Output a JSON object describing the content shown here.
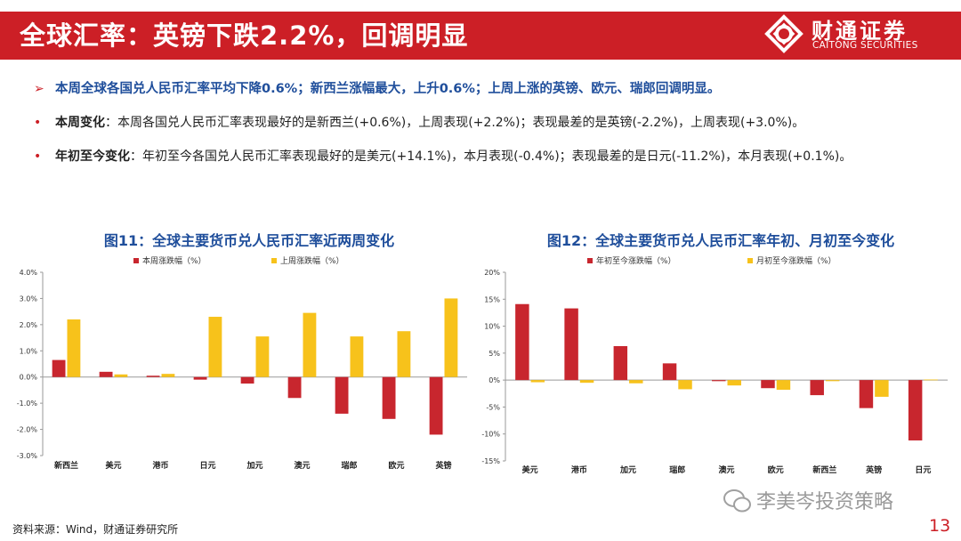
{
  "header": {
    "title": "全球汇率：英镑下跌2.2%，回调明显",
    "brand_cn": "财通证券",
    "brand_en": "CAITONG SECURITIES"
  },
  "bullets": [
    {
      "marker": "➢",
      "text": "本周全球各国兑人民币汇率平均下降0.6%；新西兰涨幅最大，上升0.6%；上周上涨的英镑、欧元、瑞郎回调明显。"
    },
    {
      "marker": "•",
      "lead": "本周变化",
      "text": "：本周各国兑人民币汇率表现最好的是新西兰(+0.6%)，上周表现(+2.2%)；表现最差的是英镑(-2.2%)，上周表现(+3.0%)。"
    },
    {
      "marker": "•",
      "lead": "年初至今变化",
      "text": "：年初至今各国兑人民币汇率表现最好的是美元(+14.1%)，本月表现(-0.4%)；表现最差的是日元(-11.2%)，本月表现(+0.1%)。"
    }
  ],
  "colors": {
    "red": "#c8262e",
    "gold": "#f7c21b",
    "brand": "#cc1f26",
    "title_blue": "#1f4e9b"
  },
  "chart_data": [
    {
      "type": "bar",
      "title": "图11：全球主要货币兑人民币汇率近两周变化",
      "categories": [
        "新西兰",
        "美元",
        "港币",
        "日元",
        "加元",
        "澳元",
        "瑞郎",
        "欧元",
        "英镑"
      ],
      "series": [
        {
          "name": "本周涨跌幅（%）",
          "color": "#c8262e",
          "values": [
            0.65,
            0.2,
            0.05,
            -0.1,
            -0.25,
            -0.8,
            -1.4,
            -1.6,
            -2.2
          ]
        },
        {
          "name": "上周涨跌幅（%）",
          "color": "#f7c21b",
          "values": [
            2.2,
            0.1,
            0.12,
            2.3,
            1.55,
            2.45,
            1.55,
            1.75,
            3.0
          ]
        }
      ],
      "ylim": [
        -3.0,
        4.0
      ],
      "yticks": [
        "4.0%",
        "3.0%",
        "2.0%",
        "1.0%",
        "0.0%",
        "-1.0%",
        "-2.0%",
        "-3.0%"
      ],
      "legend": "top",
      "grid": false
    },
    {
      "type": "bar",
      "title": "图12：全球主要货币兑人民币汇率年初、月初至今变化",
      "categories": [
        "美元",
        "港币",
        "加元",
        "瑞郎",
        "澳元",
        "欧元",
        "新西兰",
        "英镑",
        "日元"
      ],
      "series": [
        {
          "name": "年初至今涨跌幅（%）",
          "color": "#c8262e",
          "values": [
            14.1,
            13.3,
            6.3,
            3.1,
            -0.2,
            -1.5,
            -2.8,
            -5.2,
            -11.2
          ]
        },
        {
          "name": "月初至今涨跌幅（%）",
          "color": "#f7c21b",
          "values": [
            -0.4,
            -0.5,
            -0.6,
            -1.7,
            -1.0,
            -1.8,
            -0.2,
            -3.1,
            0.1
          ]
        }
      ],
      "ylim": [
        -15,
        20
      ],
      "yticks": [
        "20%",
        "15%",
        "10%",
        "5%",
        "0%",
        "-5%",
        "-10%",
        "-15%"
      ],
      "legend": "top",
      "grid": false
    }
  ],
  "footer": {
    "source": "资料来源：Wind，财通证券研究所",
    "watermark": "李美岑投资策略",
    "page": "13"
  }
}
